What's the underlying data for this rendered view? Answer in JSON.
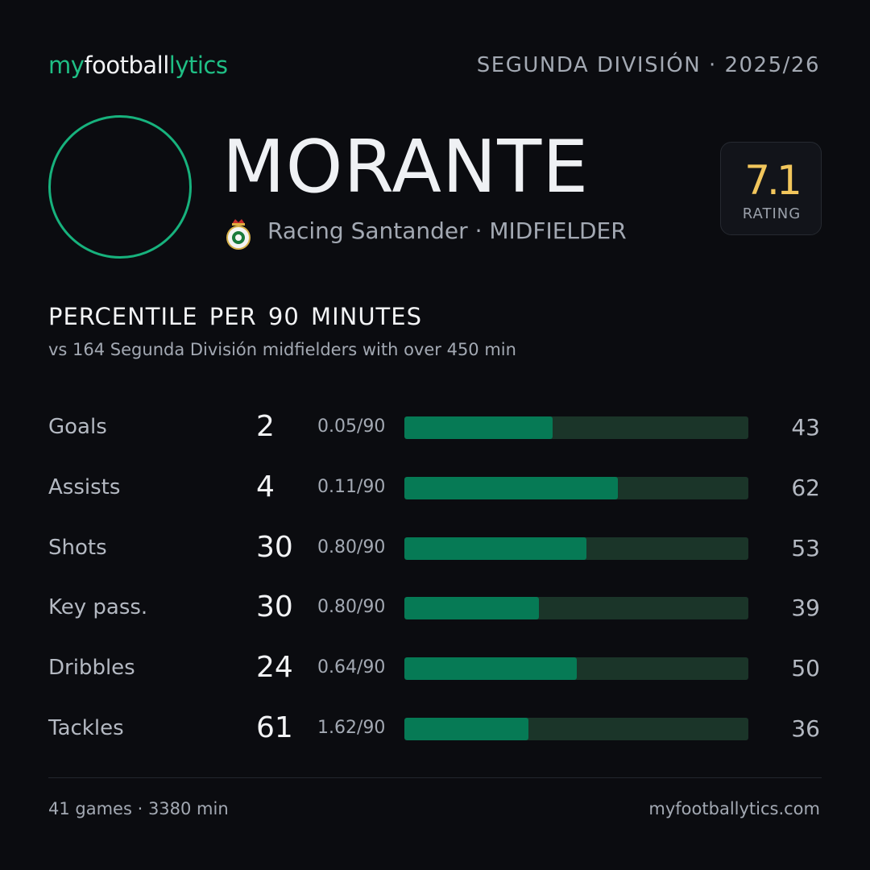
{
  "header": {
    "brand": [
      "my",
      "football",
      "lytics"
    ],
    "league": "SEGUNDA DIVISIÓN · 2025/26"
  },
  "player": {
    "name": "MORANTE",
    "club": "Racing Santander · MIDFIELDER",
    "rating": "7.1",
    "rating_label": "RATING"
  },
  "section": {
    "title": "PERCENTILE PER 90 MINUTES",
    "subtitle": "vs 164 Segunda División midfielders with over 450 min"
  },
  "chart_data": {
    "type": "bar",
    "categories": [
      "Goals",
      "Assists",
      "Shots",
      "Key pass.",
      "Dribbles",
      "Tackles"
    ],
    "totals": [
      2,
      4,
      30,
      30,
      24,
      61
    ],
    "per90": [
      "0.05/90",
      "0.11/90",
      "0.80/90",
      "0.80/90",
      "0.64/90",
      "1.62/90"
    ],
    "values": [
      43,
      62,
      53,
      39,
      50,
      36
    ],
    "xlim": [
      0,
      100
    ],
    "color": "#067a55",
    "track_color": "#1b3529"
  },
  "footer": {
    "left": "41 games · 3380 min",
    "right": "myfootballytics.com"
  }
}
